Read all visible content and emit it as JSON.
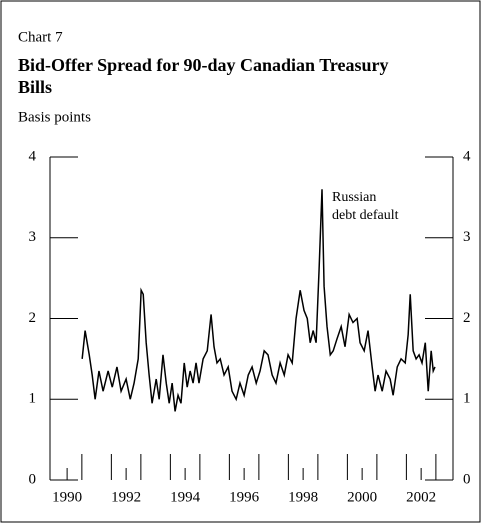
{
  "chart_data": {
    "type": "line",
    "label": "Chart 7",
    "title_lines": [
      "Bid-Offer Spread for 90-day Canadian Treasury",
      "Bills"
    ],
    "y_label": "Basis points",
    "annotation_lines": [
      "Russian",
      "debt default"
    ],
    "color": "#000000",
    "xlim": [
      1989.42,
      2003.08
    ],
    "ylim": [
      0,
      4
    ],
    "yticks": [
      0,
      1,
      2,
      3,
      4
    ],
    "xticks": [
      1990,
      1992,
      1994,
      1996,
      1998,
      2000,
      2002
    ],
    "x_minor_ticks": [
      1990.5,
      1991.5,
      1992.5,
      1993.5,
      1994.5,
      1995.5,
      1996.5,
      1997.5,
      1998.5,
      1999.5,
      2000.5,
      2001.5,
      2002.5
    ],
    "x": [
      1990.51,
      1990.61,
      1990.75,
      1990.85,
      1990.95,
      1991.08,
      1991.22,
      1991.39,
      1991.53,
      1991.69,
      1991.83,
      1992.0,
      1992.14,
      1992.27,
      1992.41,
      1992.51,
      1992.58,
      1992.68,
      1992.78,
      1992.88,
      1993.02,
      1993.12,
      1993.25,
      1993.36,
      1993.46,
      1993.56,
      1993.66,
      1993.76,
      1993.86,
      1993.97,
      1994.07,
      1994.17,
      1994.27,
      1994.37,
      1994.47,
      1994.61,
      1994.75,
      1994.88,
      1994.98,
      1995.08,
      1995.19,
      1995.32,
      1995.46,
      1995.59,
      1995.73,
      1995.86,
      1996.0,
      1996.14,
      1996.27,
      1996.41,
      1996.54,
      1996.68,
      1996.81,
      1996.95,
      1997.08,
      1997.22,
      1997.36,
      1997.49,
      1997.63,
      1997.76,
      1997.9,
      1998.03,
      1998.14,
      1998.24,
      1998.34,
      1998.44,
      1998.54,
      1998.64,
      1998.71,
      1998.81,
      1998.92,
      1999.02,
      1999.15,
      1999.29,
      1999.42,
      1999.56,
      1999.69,
      1999.83,
      1999.93,
      2000.07,
      2000.2,
      2000.34,
      2000.44,
      2000.54,
      2000.68,
      2000.81,
      2000.95,
      2001.05,
      2001.19,
      2001.32,
      2001.46,
      2001.56,
      2001.63,
      2001.73,
      2001.83,
      2001.93,
      2002.03,
      2002.14,
      2002.24,
      2002.34,
      2002.41,
      2002.47
    ],
    "values": [
      1.5,
      1.85,
      1.55,
      1.3,
      1.0,
      1.35,
      1.1,
      1.35,
      1.15,
      1.4,
      1.1,
      1.25,
      1.0,
      1.2,
      1.5,
      2.35,
      2.3,
      1.7,
      1.3,
      0.95,
      1.25,
      1.0,
      1.55,
      1.2,
      0.95,
      1.2,
      0.85,
      1.05,
      0.95,
      1.45,
      1.15,
      1.35,
      1.2,
      1.45,
      1.2,
      1.5,
      1.6,
      2.05,
      1.65,
      1.45,
      1.5,
      1.3,
      1.4,
      1.1,
      1.0,
      1.2,
      1.05,
      1.3,
      1.4,
      1.2,
      1.35,
      1.6,
      1.55,
      1.3,
      1.2,
      1.45,
      1.3,
      1.55,
      1.45,
      2.0,
      2.35,
      2.1,
      2.0,
      1.7,
      1.85,
      1.7,
      2.6,
      3.6,
      2.4,
      1.9,
      1.55,
      1.6,
      1.75,
      1.9,
      1.65,
      2.05,
      1.95,
      2.0,
      1.7,
      1.6,
      1.85,
      1.4,
      1.1,
      1.3,
      1.1,
      1.35,
      1.25,
      1.05,
      1.4,
      1.5,
      1.45,
      1.8,
      2.3,
      1.6,
      1.5,
      1.55,
      1.45,
      1.7,
      1.1,
      1.6,
      1.35,
      1.4
    ]
  }
}
